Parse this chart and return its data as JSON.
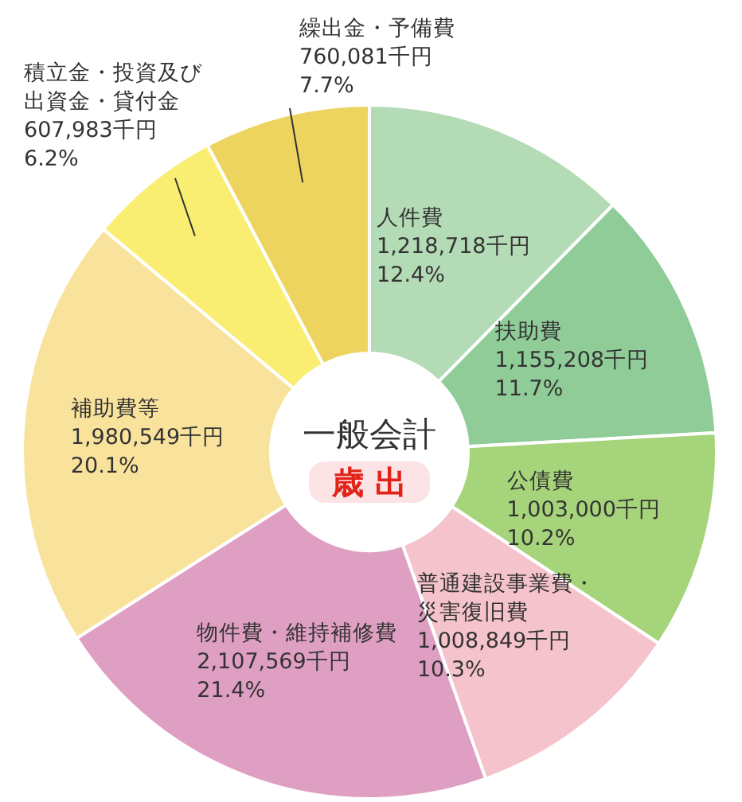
{
  "chart_data": {
    "type": "donut",
    "title": "一般会計",
    "subtitle": "歳 出",
    "categories": [
      "人件費",
      "扶助費",
      "公債費",
      "普通建設事業費・災害復旧費",
      "物件費・維持補修費",
      "補助費等",
      "積立金・投資及び出資金・貸付金",
      "繰出金・予備費"
    ],
    "values": [
      1218718,
      1155208,
      1003000,
      1008849,
      2107569,
      1980549,
      607983,
      760081
    ],
    "value_labels": [
      "1,218,718千円\n12.4%",
      "1,155,208千円\n11.7%",
      "1,003,000千円\n10.2%",
      "1,008,849千円\n10.3%",
      "2,107,569千円\n21.4%",
      "1,980,549千円\n20.1%",
      "607,983千円\n6.2%",
      "760,081千円\n7.7%"
    ],
    "colors": [
      "#b3dbb5",
      "#8fcc98",
      "#a6d47a",
      "#f5c3cb",
      "#df9fc3",
      "#f9e39c",
      "#faee72",
      "#ecd45e"
    ]
  }
}
